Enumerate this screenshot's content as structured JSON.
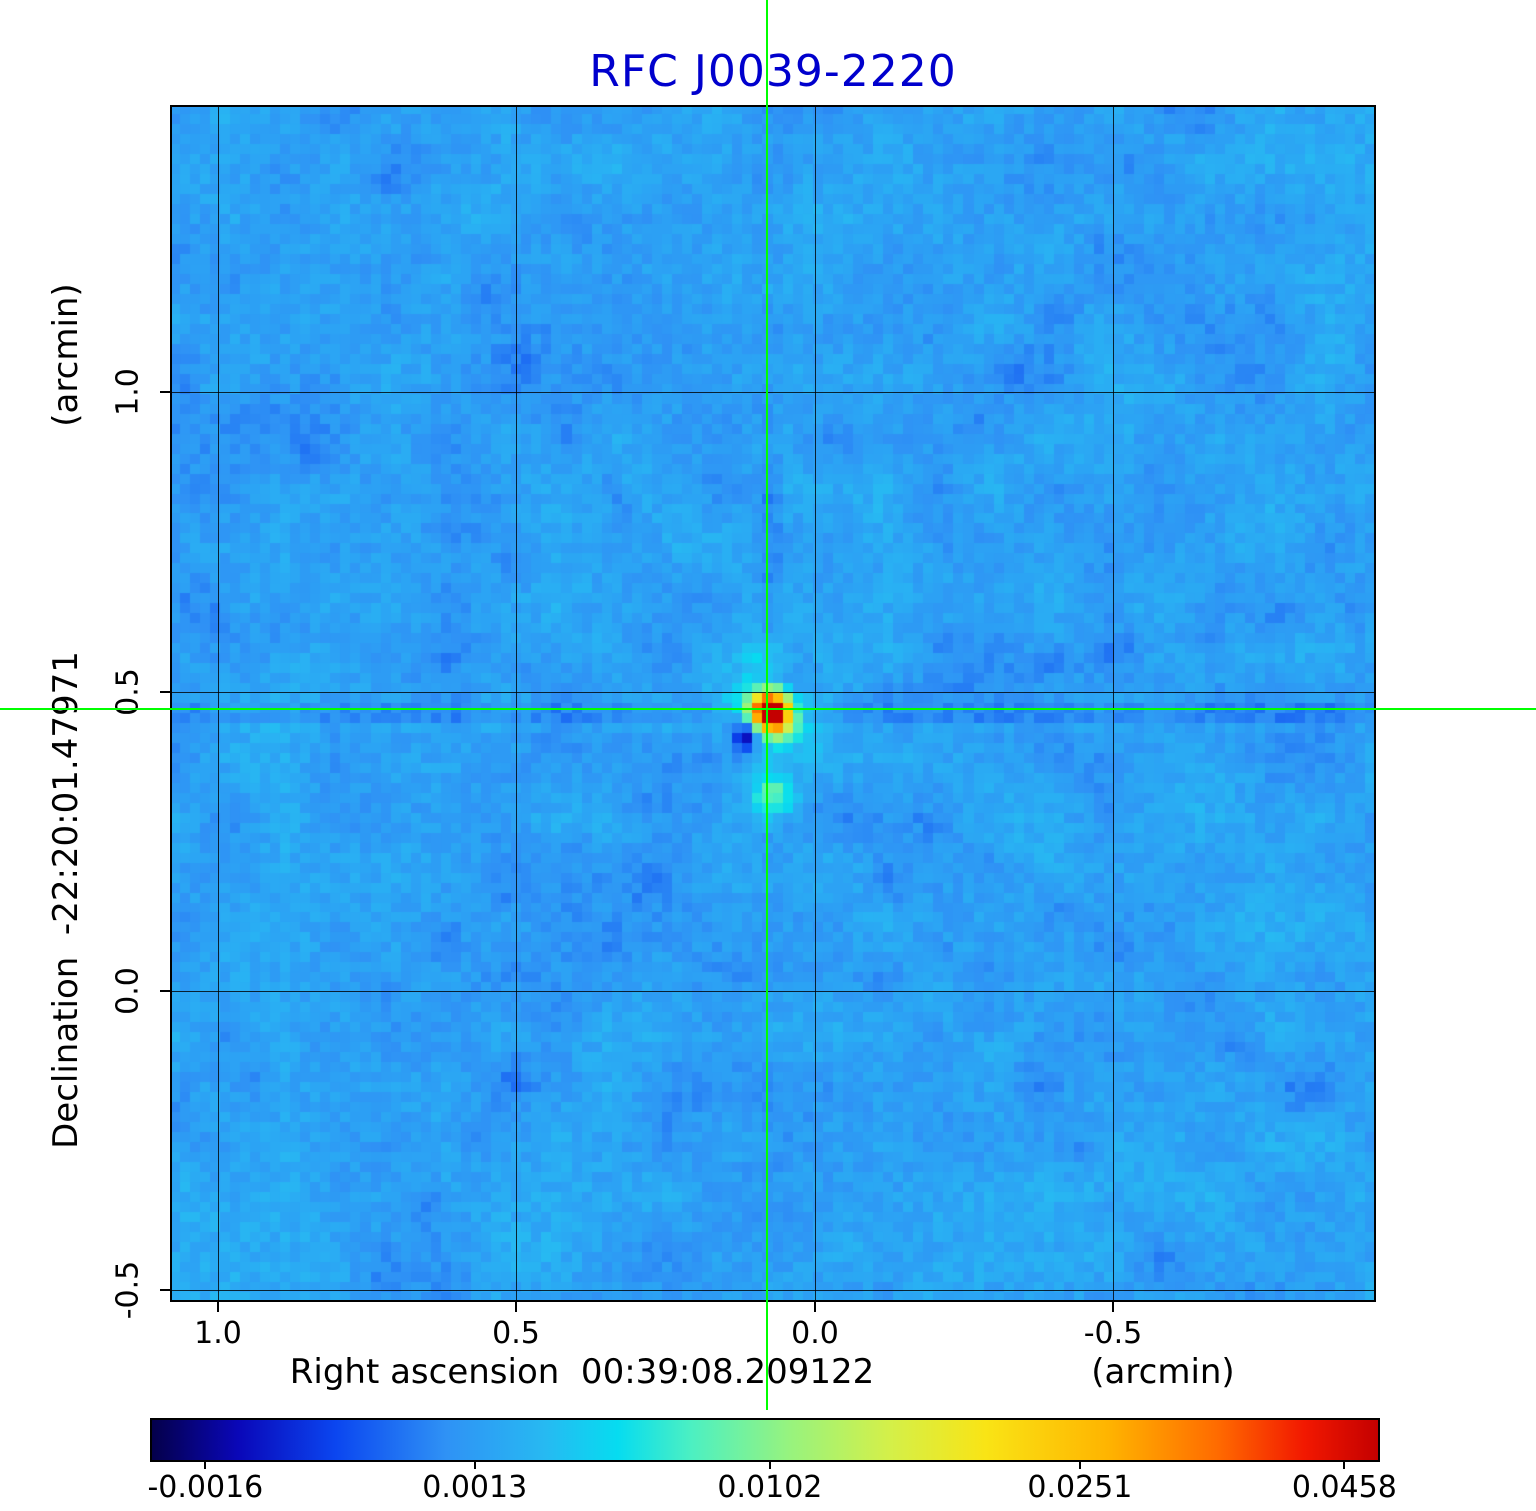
{
  "title": "RFC J0039-2220",
  "colors": {
    "title_text": "#0000cd",
    "crosshair": "#00ff00",
    "grid_lines": "#000000",
    "figure_background": "#ffffff"
  },
  "axes": {
    "x_label": "Right ascension  00:39:08.209122",
    "x_unit": "(arcmin)",
    "y_label": "Declination  -22:20:01.47971",
    "y_unit": "(arcmin)"
  },
  "chart_data": {
    "type": "heatmap",
    "title": "RFC J0039-2220",
    "xlabel": "Right ascension 00:39:08.209122 (arcmin)",
    "ylabel": "Declination -22:20:01.47971 (arcmin)",
    "x_ticks": [
      "1.0",
      "0.5",
      "0.0",
      "-0.5"
    ],
    "x_tick_values": [
      1.0,
      0.5,
      0.0,
      -0.5
    ],
    "y_ticks": [
      "1.0",
      "0.5",
      "0.0",
      "-0.5"
    ],
    "y_tick_values": [
      1.0,
      0.5,
      0.0,
      -0.5
    ],
    "x_range": [
      1.08,
      -0.94
    ],
    "y_range": [
      1.48,
      -0.52
    ],
    "units": "arcmin",
    "grid": true,
    "legend_position": "none",
    "source_position": {
      "x_arcmin": 0.08,
      "y_arcmin": 0.47
    },
    "colorbar": {
      "tick_labels": [
        "-0.0016",
        "0.0013",
        "0.0102",
        "0.0251",
        "0.0458"
      ],
      "tick_values": [
        -0.0016,
        0.0013,
        0.0102,
        0.0251,
        0.0458
      ],
      "tick_positions": [
        0.045,
        0.264,
        0.504,
        0.756,
        0.971
      ]
    },
    "colormap_stops": [
      {
        "t": 0.0,
        "color": "#04004a"
      },
      {
        "t": 0.07,
        "color": "#0a07b8"
      },
      {
        "t": 0.15,
        "color": "#0b46f0"
      },
      {
        "t": 0.24,
        "color": "#2f92f5"
      },
      {
        "t": 0.32,
        "color": "#27b9f2"
      },
      {
        "t": 0.38,
        "color": "#06dcf0"
      },
      {
        "t": 0.44,
        "color": "#4cf0c2"
      },
      {
        "t": 0.52,
        "color": "#97f37e"
      },
      {
        "t": 0.6,
        "color": "#d3f04a"
      },
      {
        "t": 0.68,
        "color": "#f9e415"
      },
      {
        "t": 0.78,
        "color": "#ffb400"
      },
      {
        "t": 0.87,
        "color": "#ff6a00"
      },
      {
        "t": 0.94,
        "color": "#f21800"
      },
      {
        "t": 1.0,
        "color": "#c40000"
      }
    ],
    "render": {
      "grid_cells": 120,
      "base_level": 0.27,
      "noise_amplitude": 0.052,
      "seed": 987654321,
      "source_cell": [
        0.494,
        0.504
      ],
      "rays_deg": [
        10,
        55,
        90,
        125,
        150,
        170,
        215,
        235,
        305,
        325
      ]
    }
  }
}
